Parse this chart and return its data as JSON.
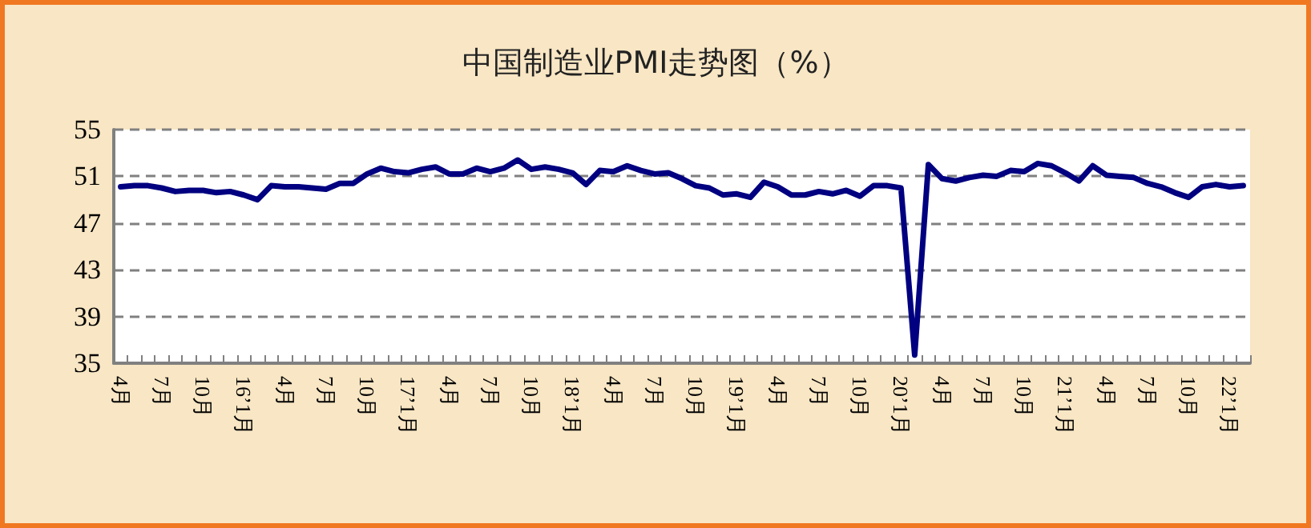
{
  "chart_data": {
    "type": "line",
    "title": "中国制造业PMI走势图（%）",
    "categories": [
      "4月",
      null,
      null,
      "7月",
      null,
      null,
      "10月",
      null,
      null,
      "16’1月",
      null,
      null,
      "4月",
      null,
      null,
      "7月",
      null,
      null,
      "10月",
      null,
      null,
      "17’1月",
      null,
      null,
      "4月",
      null,
      null,
      "7月",
      null,
      null,
      "10月",
      null,
      null,
      "18’1月",
      null,
      null,
      "4月",
      null,
      null,
      "7月",
      null,
      null,
      "10月",
      null,
      null,
      "19’1月",
      null,
      null,
      "4月",
      null,
      null,
      "7月",
      null,
      null,
      "10月",
      null,
      null,
      "20’1月",
      null,
      null,
      "4月",
      null,
      null,
      "7月",
      null,
      null,
      "10月",
      null,
      null,
      "21’1月",
      null,
      null,
      "4月",
      null,
      null,
      "7月",
      null,
      null,
      "10月",
      null,
      null,
      "22’1月",
      null
    ],
    "series": [
      {
        "color": "#000080",
        "values": [
          50.1,
          50.2,
          50.2,
          50.0,
          49.7,
          49.8,
          49.8,
          49.6,
          49.7,
          49.4,
          49.0,
          50.2,
          50.1,
          50.1,
          50.0,
          49.9,
          50.4,
          50.4,
          51.2,
          51.7,
          51.4,
          51.3,
          51.6,
          51.8,
          51.2,
          51.2,
          51.7,
          51.4,
          51.7,
          52.4,
          51.6,
          51.8,
          51.6,
          51.3,
          50.3,
          51.5,
          51.4,
          51.9,
          51.5,
          51.2,
          51.3,
          50.8,
          50.2,
          50.0,
          49.4,
          49.5,
          49.2,
          50.5,
          50.1,
          49.4,
          49.4,
          49.7,
          49.5,
          49.8,
          49.3,
          50.2,
          50.2,
          50.0,
          35.7,
          52.0,
          50.8,
          50.6,
          50.9,
          51.1,
          51.0,
          51.5,
          51.4,
          52.1,
          51.9,
          51.3,
          50.6,
          51.9,
          51.1,
          51.0,
          50.9,
          50.4,
          50.1,
          49.6,
          49.2,
          50.1,
          50.3,
          50.1,
          50.2
        ]
      }
    ],
    "ylim": [
      35,
      55
    ],
    "yticks": [
      35,
      39,
      43,
      47,
      51,
      55
    ],
    "grid": "y",
    "marker": "none",
    "line_style": "solid"
  }
}
